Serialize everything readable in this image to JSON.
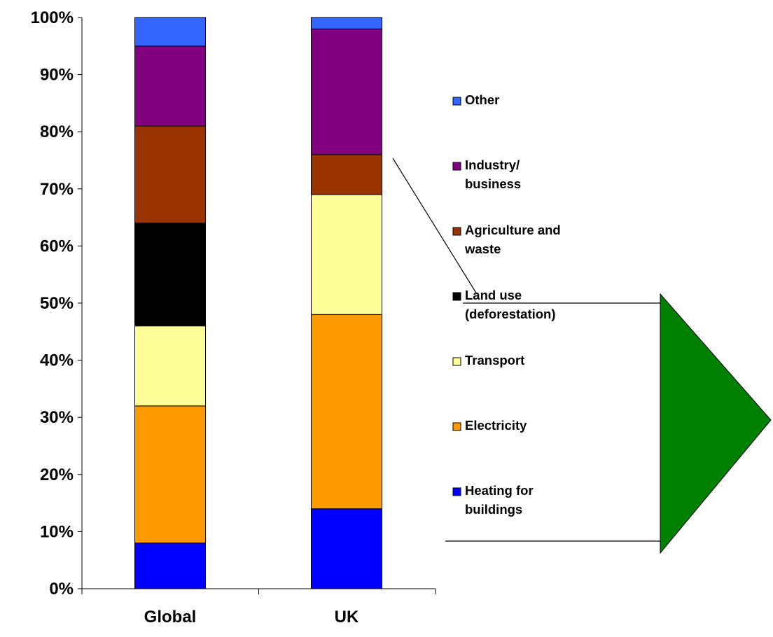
{
  "chart_data": {
    "type": "bar",
    "stacked": true,
    "categories": [
      "Global",
      "UK"
    ],
    "ylim": [
      0,
      100
    ],
    "y_ticks": [
      "0%",
      "10%",
      "20%",
      "30%",
      "40%",
      "50%",
      "60%",
      "70%",
      "80%",
      "90%",
      "100%"
    ],
    "grid": false,
    "legend_position": "right",
    "series": [
      {
        "name": "Heating for buildings",
        "label_lines": [
          "Heating for",
          "buildings"
        ],
        "color": "#0000ff",
        "values": [
          8,
          14
        ]
      },
      {
        "name": "Electricity",
        "label_lines": [
          "Electricity"
        ],
        "color": "#ff9900",
        "values": [
          24,
          34
        ]
      },
      {
        "name": "Transport",
        "label_lines": [
          "Transport"
        ],
        "color": "#ffff99",
        "values": [
          14,
          21
        ]
      },
      {
        "name": "Land use (deforestation)",
        "label_lines": [
          "Land use",
          "(deforestation)"
        ],
        "color": "#000000",
        "values": [
          18,
          0
        ]
      },
      {
        "name": "Agriculture and waste",
        "label_lines": [
          "Agriculture and",
          "waste"
        ],
        "color": "#993300",
        "values": [
          17,
          7
        ]
      },
      {
        "name": "Industry/ business",
        "label_lines": [
          "Industry/",
          "business"
        ],
        "color": "#800080",
        "values": [
          14,
          22
        ]
      },
      {
        "name": "Other",
        "label_lines": [
          "Other"
        ],
        "color": "#3366ff",
        "values": [
          5,
          2
        ]
      }
    ],
    "callout": {
      "from_series": "Agriculture and waste",
      "arrow_color": "#008000",
      "arrow_direction": "right"
    }
  }
}
